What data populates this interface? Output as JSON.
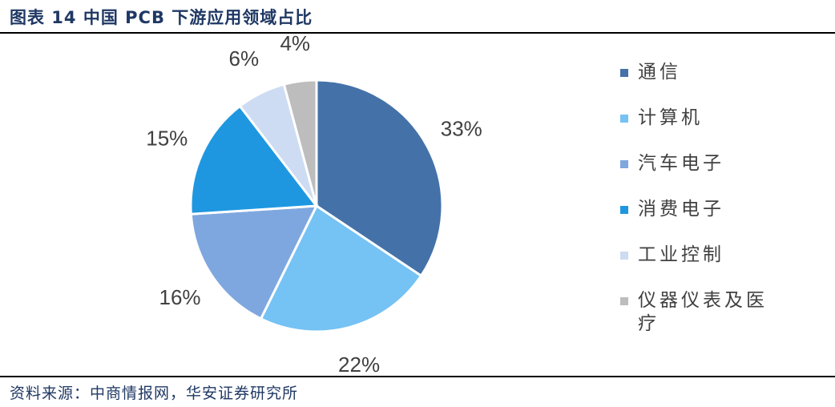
{
  "header": {
    "title": "图表 14 中国 PCB 下游应用领域占比"
  },
  "footer": {
    "source": "资料来源：中商情报网，华安证券研究所"
  },
  "chart_data": {
    "type": "pie",
    "title": "",
    "legend_position": "right",
    "slices": [
      {
        "label": "通信",
        "value": 33,
        "display": "33%",
        "color": "#4472a8"
      },
      {
        "label": "计算机",
        "value": 22,
        "display": "22%",
        "color": "#75c2f4"
      },
      {
        "label": "汽车电子",
        "value": 16,
        "display": "16%",
        "color": "#7fa7df"
      },
      {
        "label": "消费电子",
        "value": 15,
        "display": "15%",
        "color": "#1f97e0"
      },
      {
        "label": "工业控制",
        "value": 6,
        "display": "6%",
        "color": "#cddcf2"
      },
      {
        "label": "仪器仪表及医疗",
        "value": 4,
        "display": "4%",
        "color": "#bdbdbd"
      }
    ]
  }
}
